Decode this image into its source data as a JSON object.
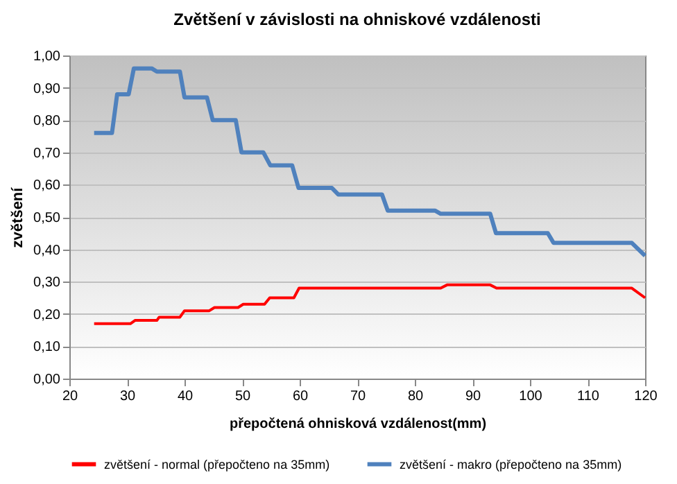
{
  "chart_data": {
    "type": "line",
    "title": "Zvětšení v závislosti na ohniskové vzdálenosti",
    "xlabel": "přepočtená ohnisková vzdálenost(mm)",
    "ylabel": "zvětšení",
    "xlim": [
      20,
      120
    ],
    "xticks": [
      20,
      30,
      40,
      50,
      60,
      70,
      80,
      90,
      100,
      110,
      120
    ],
    "ylim": [
      0,
      1
    ],
    "yticks": [
      {
        "value": 0,
        "label": "0,00"
      },
      {
        "value": 0.1,
        "label": "0,10"
      },
      {
        "value": 0.2,
        "label": "0,20"
      },
      {
        "value": 0.3,
        "label": "0,30"
      },
      {
        "value": 0.4,
        "label": "0,40"
      },
      {
        "value": 0.5,
        "label": "0,50"
      },
      {
        "value": 0.6,
        "label": "0,60"
      },
      {
        "value": 0.7,
        "label": "0,70"
      },
      {
        "value": 0.8,
        "label": "0,80"
      },
      {
        "value": 0.9,
        "label": "0,90"
      },
      {
        "value": 1,
        "label": "1,00"
      }
    ],
    "grid": "y",
    "legend": "bottom",
    "series": [
      {
        "name": "zvětšení - normal (přepočteno na 35mm)",
        "color": "#ff0000",
        "x": [
          24.3,
          30.6,
          31.4,
          35.2,
          35.6,
          39.2,
          40,
          44.3,
          45.2,
          49.3,
          50.2,
          53.9,
          54.8,
          59,
          59.9,
          74.8,
          75.6,
          84.5,
          85.6,
          93.1,
          94.2,
          117.7,
          120
        ],
        "values": [
          0.17,
          0.17,
          0.18,
          0.18,
          0.19,
          0.19,
          0.21,
          0.21,
          0.22,
          0.22,
          0.23,
          0.23,
          0.25,
          0.25,
          0.28,
          0.28,
          0.28,
          0.28,
          0.29,
          0.29,
          0.28,
          0.28,
          0.25
        ]
      },
      {
        "name": "zvětšení - makro (přepočteno na 35mm)",
        "color": "#4f81bd",
        "x": [
          24.3,
          27.4,
          28.3,
          30.3,
          31.2,
          34.3,
          35.2,
          39.2,
          40,
          43.9,
          44.9,
          48.9,
          49.9,
          53.7,
          54.9,
          58.7,
          59.8,
          65.6,
          66.7,
          74.3,
          75.3,
          83.5,
          84.5,
          93.1,
          94.1,
          103.1,
          104.1,
          117.7,
          120
        ],
        "values": [
          0.76,
          0.76,
          0.88,
          0.88,
          0.96,
          0.96,
          0.95,
          0.95,
          0.87,
          0.87,
          0.8,
          0.8,
          0.7,
          0.7,
          0.66,
          0.66,
          0.59,
          0.59,
          0.57,
          0.57,
          0.52,
          0.52,
          0.51,
          0.51,
          0.45,
          0.45,
          0.42,
          0.42,
          0.38
        ]
      }
    ]
  }
}
